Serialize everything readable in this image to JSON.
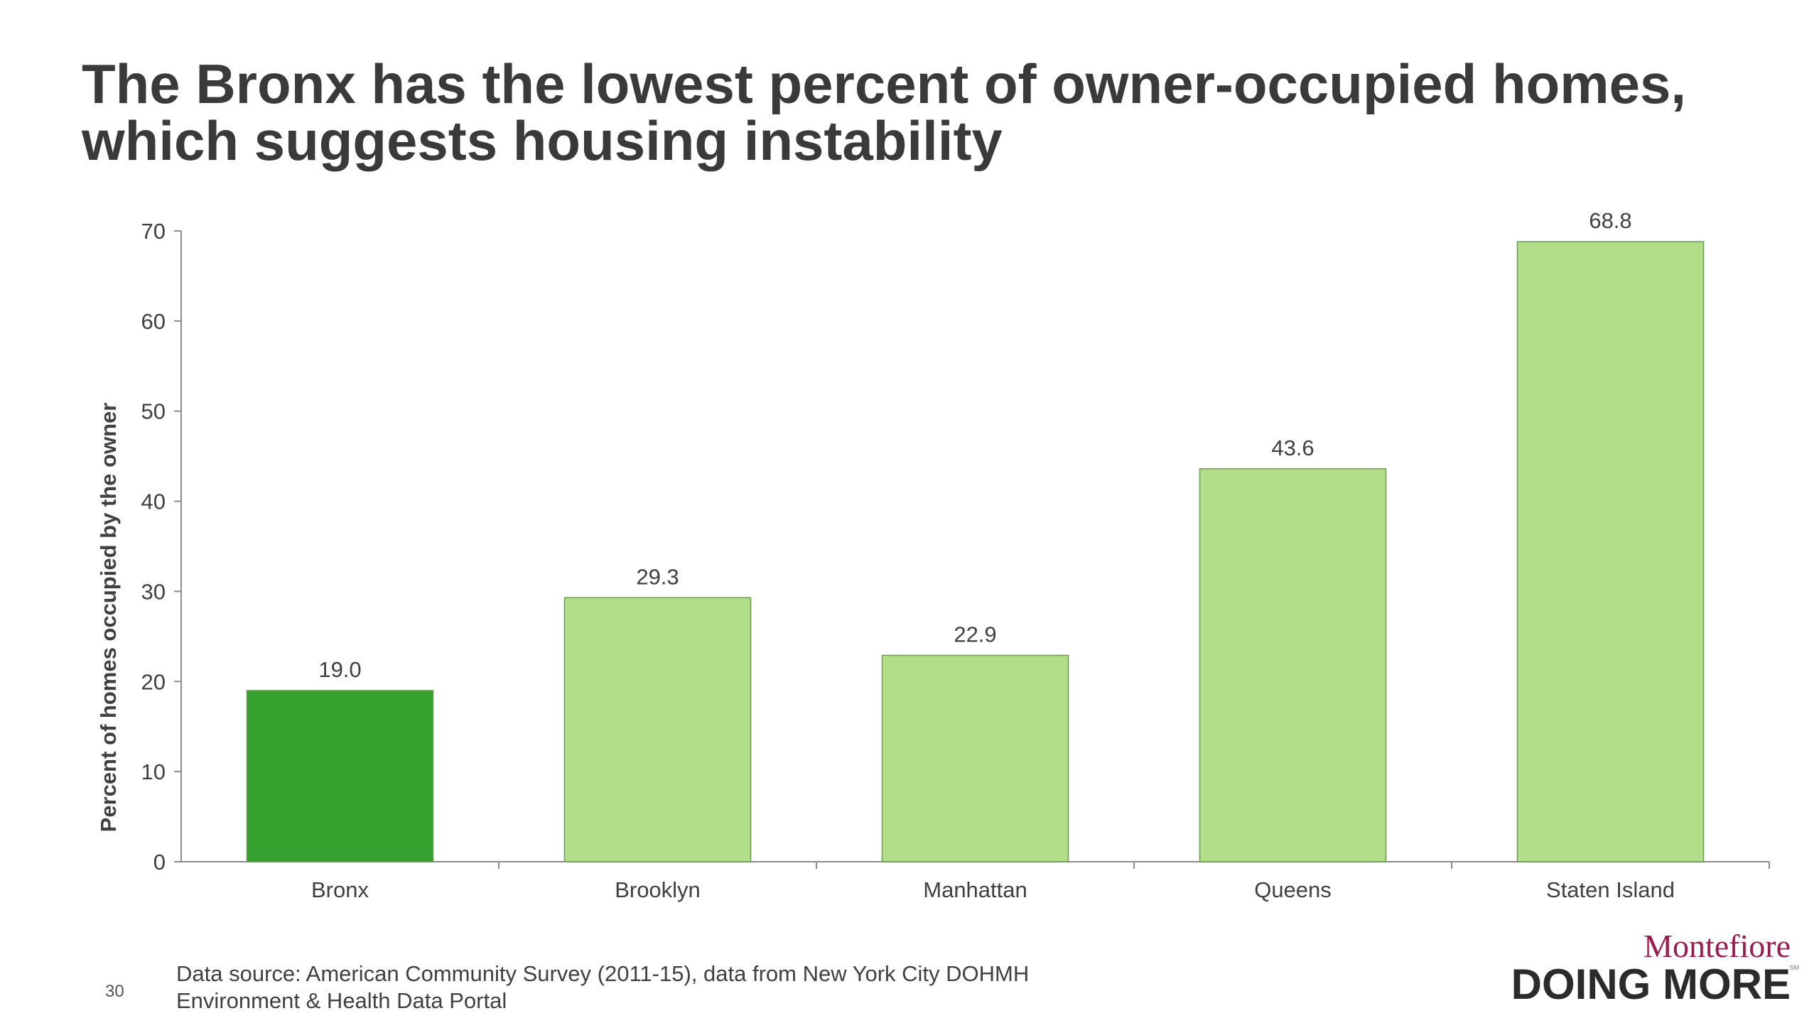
{
  "title": {
    "line1": "The Bronx has the lowest percent of owner-occupied homes,",
    "line2": "which suggests housing instability"
  },
  "chart_data": {
    "type": "bar",
    "categories": [
      "Bronx",
      "Brooklyn",
      "Manhattan",
      "Queens",
      "Staten Island"
    ],
    "values": [
      19.0,
      29.3,
      22.9,
      43.6,
      68.8
    ],
    "value_labels": [
      "19.0",
      "29.3",
      "22.9",
      "43.6",
      "68.8"
    ],
    "ylabel": "Percent of homes occupied by the owner",
    "xlabel": "",
    "ylim": [
      0,
      70
    ],
    "yticks": [
      "0",
      "10",
      "20",
      "30",
      "40",
      "50",
      "60",
      "70"
    ],
    "grid": false,
    "legend": "none",
    "colors": {
      "highlight": "#36a12e",
      "default": "#b2de8a",
      "bar_edge": "#6a9a50",
      "axis": "#8c8c8c",
      "text": "#404040"
    },
    "highlight_index": 0
  },
  "footer": {
    "page_number": "30",
    "source_line1": "Data source: American Community Survey (2011-15), data from New York City DOHMH",
    "source_line2": "Environment & Health Data Portal"
  },
  "brand": {
    "name": "Montefiore",
    "tagline": "DOING MORE",
    "mark": "SM"
  }
}
